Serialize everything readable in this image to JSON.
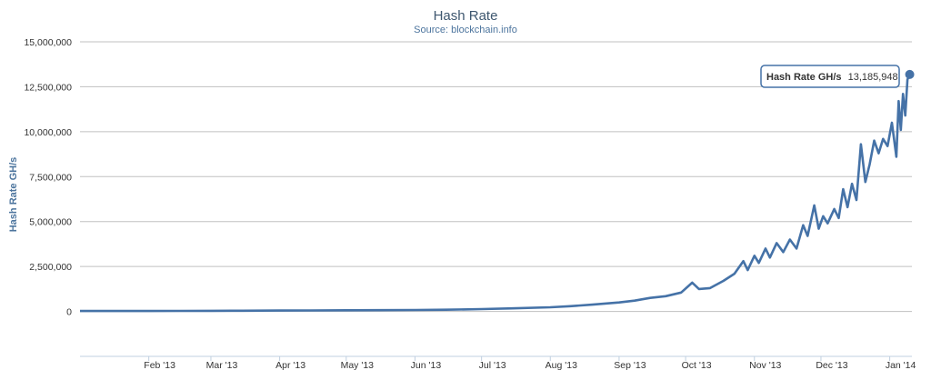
{
  "chart_data": {
    "type": "line",
    "title": "Hash Rate",
    "subtitle": "Source: blockchain.info",
    "ylabel": "Hash Rate GH/s",
    "ylim": [
      -2500000,
      15000000
    ],
    "yticks": [
      {
        "value": 0,
        "label": "0"
      },
      {
        "value": 2500000,
        "label": "2,500,000"
      },
      {
        "value": 5000000,
        "label": "5,000,000"
      },
      {
        "value": 7500000,
        "label": "7,500,000"
      },
      {
        "value": 10000000,
        "label": "10,000,000"
      },
      {
        "value": 12500000,
        "label": "12,500,000"
      },
      {
        "value": 15000000,
        "label": "15,000,000"
      }
    ],
    "xlim": [
      "2013-01-01",
      "2014-01-11"
    ],
    "xticks": [
      {
        "date": "2013-02-01",
        "label": "Feb '13"
      },
      {
        "date": "2013-03-01",
        "label": "Mar '13"
      },
      {
        "date": "2013-04-01",
        "label": "Apr '13"
      },
      {
        "date": "2013-05-01",
        "label": "May '13"
      },
      {
        "date": "2013-06-01",
        "label": "Jun '13"
      },
      {
        "date": "2013-07-01",
        "label": "Jul '13"
      },
      {
        "date": "2013-08-01",
        "label": "Aug '13"
      },
      {
        "date": "2013-09-01",
        "label": "Sep '13"
      },
      {
        "date": "2013-10-01",
        "label": "Oct '13"
      },
      {
        "date": "2013-11-01",
        "label": "Nov '13"
      },
      {
        "date": "2013-12-01",
        "label": "Dec '13"
      },
      {
        "date": "2014-01-01",
        "label": "Jan '14"
      }
    ],
    "grid": true,
    "legend": false,
    "series": [
      {
        "color": "#4572a7",
        "points": [
          [
            "2013-01-01",
            22000
          ],
          [
            "2013-01-15",
            24000
          ],
          [
            "2013-02-01",
            26000
          ],
          [
            "2013-02-15",
            28000
          ],
          [
            "2013-03-01",
            32000
          ],
          [
            "2013-03-15",
            38000
          ],
          [
            "2013-04-01",
            48000
          ],
          [
            "2013-04-15",
            55000
          ],
          [
            "2013-05-01",
            62000
          ],
          [
            "2013-05-15",
            70000
          ],
          [
            "2013-06-01",
            80000
          ],
          [
            "2013-06-15",
            95000
          ],
          [
            "2013-07-01",
            130000
          ],
          [
            "2013-07-15",
            170000
          ],
          [
            "2013-08-01",
            230000
          ],
          [
            "2013-08-10",
            290000
          ],
          [
            "2013-08-20",
            380000
          ],
          [
            "2013-09-01",
            500000
          ],
          [
            "2013-09-08",
            600000
          ],
          [
            "2013-09-15",
            750000
          ],
          [
            "2013-09-22",
            850000
          ],
          [
            "2013-09-29",
            1050000
          ],
          [
            "2013-10-04",
            1600000
          ],
          [
            "2013-10-07",
            1250000
          ],
          [
            "2013-10-12",
            1300000
          ],
          [
            "2013-10-18",
            1700000
          ],
          [
            "2013-10-23",
            2100000
          ],
          [
            "2013-10-27",
            2800000
          ],
          [
            "2013-10-29",
            2300000
          ],
          [
            "2013-11-01",
            3100000
          ],
          [
            "2013-11-03",
            2700000
          ],
          [
            "2013-11-06",
            3500000
          ],
          [
            "2013-11-08",
            3000000
          ],
          [
            "2013-11-11",
            3800000
          ],
          [
            "2013-11-14",
            3300000
          ],
          [
            "2013-11-17",
            4000000
          ],
          [
            "2013-11-20",
            3500000
          ],
          [
            "2013-11-23",
            4800000
          ],
          [
            "2013-11-25",
            4200000
          ],
          [
            "2013-11-28",
            5900000
          ],
          [
            "2013-11-30",
            4600000
          ],
          [
            "2013-12-02",
            5300000
          ],
          [
            "2013-12-04",
            4900000
          ],
          [
            "2013-12-07",
            5700000
          ],
          [
            "2013-12-09",
            5200000
          ],
          [
            "2013-12-11",
            6800000
          ],
          [
            "2013-12-13",
            5800000
          ],
          [
            "2013-12-15",
            7100000
          ],
          [
            "2013-12-17",
            6200000
          ],
          [
            "2013-12-19",
            9300000
          ],
          [
            "2013-12-21",
            7200000
          ],
          [
            "2013-12-23",
            8200000
          ],
          [
            "2013-12-25",
            9500000
          ],
          [
            "2013-12-27",
            8800000
          ],
          [
            "2013-12-29",
            9600000
          ],
          [
            "2013-12-31",
            9200000
          ],
          [
            "2014-01-02",
            10500000
          ],
          [
            "2014-01-04",
            8600000
          ],
          [
            "2014-01-05",
            11700000
          ],
          [
            "2014-01-06",
            10100000
          ],
          [
            "2014-01-07",
            12100000
          ],
          [
            "2014-01-08",
            10900000
          ],
          [
            "2014-01-09",
            12900000
          ],
          [
            "2014-01-10",
            13185948
          ]
        ]
      }
    ],
    "tooltip": {
      "label": "Hash Rate GH/s",
      "value": "13,185,948"
    }
  }
}
